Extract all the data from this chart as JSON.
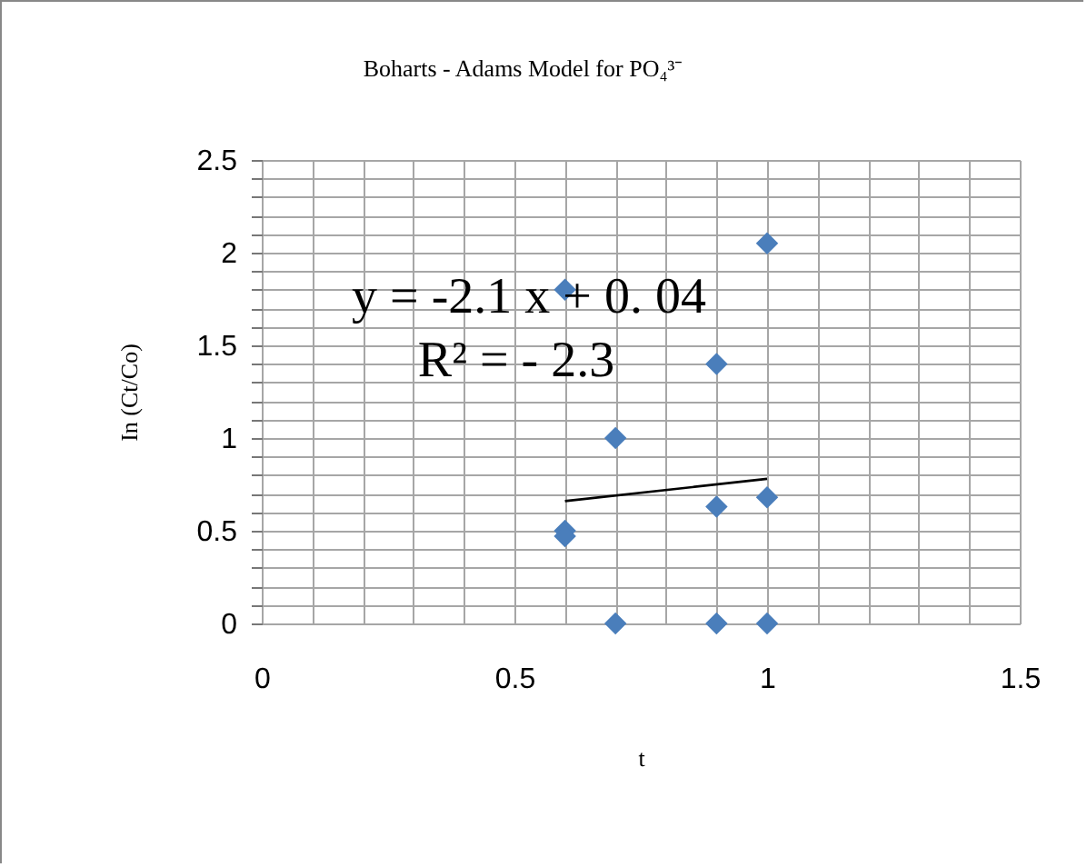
{
  "chart_data": {
    "type": "scatter",
    "title": "Boharts - Adams Model for PO₄³⁻",
    "xlabel": "t",
    "ylabel": "In (Ct/Co)",
    "annotations": [
      "y =  -2.1 x + 0. 04",
      "R² =  - 2.3"
    ],
    "series": [
      {
        "color": "#4a7ebb",
        "marker": "diamond",
        "x": [
          0.6,
          0.6,
          0.6,
          0.7,
          0.7,
          0.9,
          0.9,
          0.9,
          1.0,
          1.0,
          1.0
        ],
        "values": [
          1.8,
          0.5,
          0.47,
          1.0,
          0,
          1.4,
          0.63,
          0,
          2.05,
          0.68,
          0
        ]
      },
      {
        "type": "line",
        "color": "#000000",
        "marker": "none",
        "x": [
          0.6,
          1.0
        ],
        "values": [
          0.66,
          0.78
        ]
      }
    ],
    "xlim": [
      0,
      1.5
    ],
    "xticks": [
      0,
      {
        "value": 0.1,
        "label": null
      },
      {
        "value": 0.2,
        "label": null
      },
      {
        "value": 0.3,
        "label": null
      },
      {
        "value": 0.4,
        "label": null
      },
      0.5,
      {
        "value": 0.6,
        "label": null
      },
      {
        "value": 0.7,
        "label": null
      },
      {
        "value": 0.8,
        "label": null
      },
      {
        "value": 0.9,
        "label": null
      },
      1,
      {
        "value": 1.1,
        "label": null
      },
      {
        "value": 1.2,
        "label": null
      },
      {
        "value": 1.3,
        "label": null
      },
      {
        "value": 1.4,
        "label": null
      },
      1.5
    ],
    "ylim": [
      0,
      2.5
    ],
    "yticks": [
      0,
      {
        "value": 0.1,
        "label": null
      },
      {
        "value": 0.2,
        "label": null
      },
      {
        "value": 0.3,
        "label": null
      },
      {
        "value": 0.4,
        "label": null
      },
      0.5,
      {
        "value": 0.6,
        "label": null
      },
      {
        "value": 0.7,
        "label": null
      },
      {
        "value": 0.8,
        "label": null
      },
      {
        "value": 0.9,
        "label": null
      },
      1,
      {
        "value": 1.1,
        "label": null
      },
      {
        "value": 1.2,
        "label": null
      },
      {
        "value": 1.3,
        "label": null
      },
      {
        "value": 1.4,
        "label": null
      },
      1.5,
      {
        "value": 1.6,
        "label": null
      },
      {
        "value": 1.7,
        "label": null
      },
      {
        "value": 1.8,
        "label": null
      },
      {
        "value": 1.9,
        "label": null
      },
      2,
      {
        "value": 2.1,
        "label": null
      },
      {
        "value": 2.2,
        "label": null
      },
      {
        "value": 2.3,
        "label": null
      },
      {
        "value": 2.4,
        "label": null
      },
      2.5
    ],
    "grid": true
  }
}
